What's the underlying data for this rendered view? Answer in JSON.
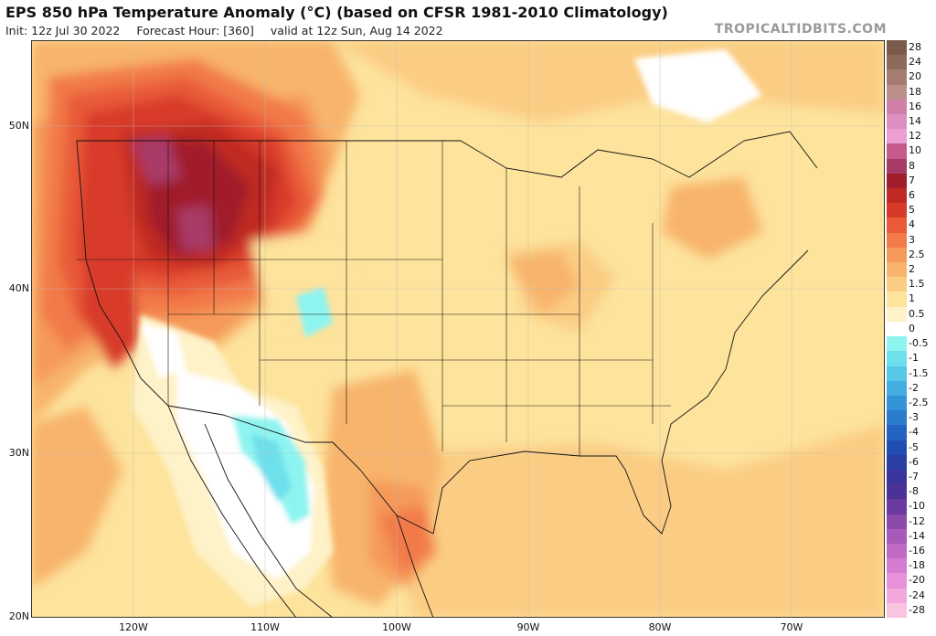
{
  "header": {
    "title": "EPS 850 hPa Temperature Anomaly (°C) (based on CFSR 1981-2010 Climatology)",
    "init": "Init: 12z Jul 30 2022",
    "forecast_hour": "Forecast Hour: [360]",
    "valid": "valid at 12z Sun, Aug 14 2022",
    "credit": "TROPICALTIDBITS.COM"
  },
  "map": {
    "lat_labels": [
      "50N",
      "40N",
      "30N",
      "20N"
    ],
    "lon_labels": [
      "120W",
      "110W",
      "100W",
      "90W",
      "80W",
      "70W"
    ]
  },
  "colorbar": {
    "entries": [
      {
        "label": "28",
        "color": "#7a5a4a"
      },
      {
        "label": "24",
        "color": "#8e6a5a"
      },
      {
        "label": "20",
        "color": "#a57d70"
      },
      {
        "label": "18",
        "color": "#bd8f8a"
      },
      {
        "label": "16",
        "color": "#cf7fa8"
      },
      {
        "label": "14",
        "color": "#de8fc0"
      },
      {
        "label": "12",
        "color": "#ec9ed4"
      },
      {
        "label": "10",
        "color": "#c65a8a"
      },
      {
        "label": "8",
        "color": "#a83a68"
      },
      {
        "label": "7",
        "color": "#a01e2c"
      },
      {
        "label": "6",
        "color": "#bf2a24"
      },
      {
        "label": "5",
        "color": "#d83a2a"
      },
      {
        "label": "4",
        "color": "#e85a38"
      },
      {
        "label": "3",
        "color": "#f27a48"
      },
      {
        "label": "2.5",
        "color": "#f59a5a"
      },
      {
        "label": "2",
        "color": "#f8b46c"
      },
      {
        "label": "1.5",
        "color": "#fbcd84"
      },
      {
        "label": "1",
        "color": "#fde39c"
      },
      {
        "label": "0.5",
        "color": "#fef2c8"
      },
      {
        "label": "0",
        "color": "#ffffff"
      },
      {
        "label": "-0.5",
        "color": "#8ef4f0"
      },
      {
        "label": "-1",
        "color": "#6ee0ec"
      },
      {
        "label": "-1.5",
        "color": "#58c8e8"
      },
      {
        "label": "-2",
        "color": "#44aee2"
      },
      {
        "label": "-2.5",
        "color": "#3494d8"
      },
      {
        "label": "-3",
        "color": "#2a7ccc"
      },
      {
        "label": "-4",
        "color": "#2464c0"
      },
      {
        "label": "-5",
        "color": "#1f4eb0"
      },
      {
        "label": "-6",
        "color": "#2a3ea4"
      },
      {
        "label": "-7",
        "color": "#3a349c"
      },
      {
        "label": "-8",
        "color": "#4a3296"
      },
      {
        "label": "-10",
        "color": "#6a3aa0"
      },
      {
        "label": "-12",
        "color": "#8a4aaa"
      },
      {
        "label": "-14",
        "color": "#a85ab8"
      },
      {
        "label": "-16",
        "color": "#c06ac4"
      },
      {
        "label": "-18",
        "color": "#d67cd0"
      },
      {
        "label": "-20",
        "color": "#e890d8"
      },
      {
        "label": "-24",
        "color": "#f2a8dc"
      },
      {
        "label": "-28",
        "color": "#f8c4e0"
      }
    ]
  }
}
